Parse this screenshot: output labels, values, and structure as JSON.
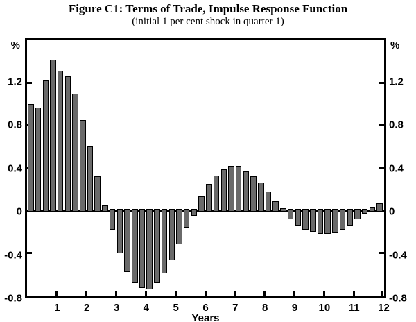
{
  "figure": {
    "title": "Figure C1: Terms of Trade, Impulse Response Function",
    "subtitle": "(initial 1 per cent shock in quarter 1)"
  },
  "axes": {
    "y_unit_left": "%",
    "y_unit_right": "%",
    "x_title": "Years"
  },
  "chart_data": {
    "type": "bar",
    "title": "Figure C1: Terms of Trade, Impulse Response Function",
    "subtitle": "(initial 1 per cent shock in quarter 1)",
    "xlabel": "Years",
    "ylabel": "%",
    "ylim": [
      -0.8,
      1.6
    ],
    "y_ticks_labeled": [
      1.2,
      0.8,
      0.4,
      0,
      -0.4,
      -0.8
    ],
    "y_tick_marks": [
      1.2,
      0.8,
      0.4,
      -0.4
    ],
    "x_tick_labels": [
      "1",
      "2",
      "3",
      "4",
      "5",
      "6",
      "7",
      "8",
      "9",
      "10",
      "11",
      "12"
    ],
    "quarters_per_year": 4,
    "values": [
      1.0,
      0.97,
      1.22,
      1.42,
      1.31,
      1.26,
      1.1,
      0.85,
      0.6,
      0.32,
      0.05,
      -0.18,
      -0.4,
      -0.58,
      -0.68,
      -0.73,
      -0.74,
      -0.68,
      -0.59,
      -0.47,
      -0.32,
      -0.16,
      -0.05,
      0.13,
      0.25,
      0.33,
      0.39,
      0.42,
      0.42,
      0.37,
      0.32,
      0.26,
      0.18,
      0.09,
      0.02,
      -0.08,
      -0.14,
      -0.18,
      -0.2,
      -0.22,
      -0.22,
      -0.21,
      -0.18,
      -0.14,
      -0.08,
      -0.03,
      0.03,
      0.07
    ],
    "grid": false,
    "legend": false
  },
  "style": {
    "bar_fill": "#6a6a6a",
    "axis_color": "#000000",
    "background": "#ffffff"
  }
}
